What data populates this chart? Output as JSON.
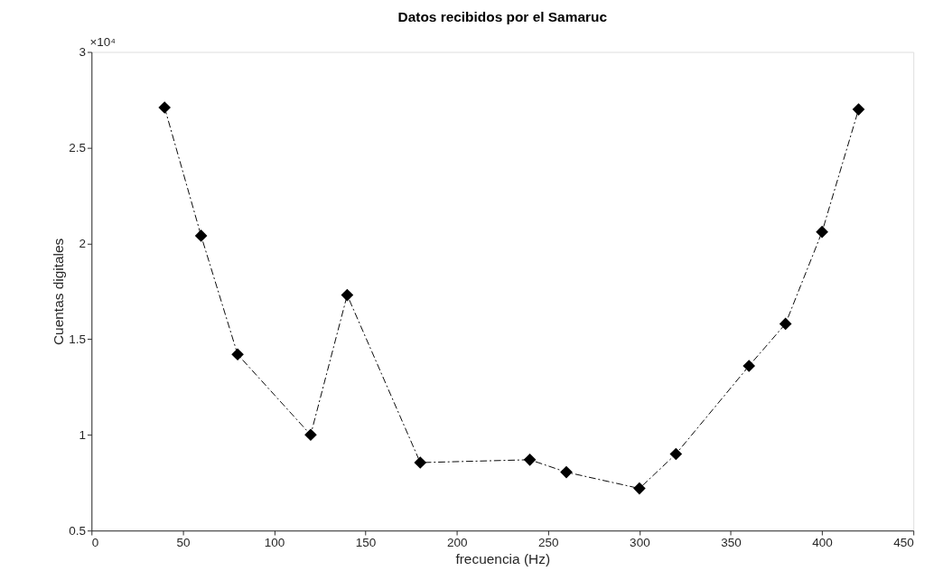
{
  "chart_data": {
    "type": "line",
    "title": "Datos recibidos por el Samaruc",
    "xlabel": "frecuencia (Hz)",
    "ylabel": "Cuentas digitales",
    "x": [
      40,
      60,
      80,
      120,
      140,
      180,
      240,
      260,
      300,
      320,
      360,
      380,
      400,
      420
    ],
    "series": [
      {
        "color": "#000000",
        "values": [
          2.71,
          2.04,
          1.42,
          1.0,
          1.73,
          0.855,
          0.87,
          0.805,
          0.72,
          0.9,
          1.36,
          1.58,
          2.06,
          2.7
        ]
      }
    ],
    "xlim": [
      0,
      450
    ],
    "xticks": [
      0,
      50,
      100,
      150,
      200,
      250,
      300,
      350,
      400,
      450
    ],
    "ylim": [
      0.5,
      3
    ],
    "yticks": [
      0.5,
      1,
      1.5,
      2,
      2.5,
      3
    ],
    "annotations": [
      "×10⁴"
    ],
    "marker": "diamond",
    "line_style": "dashed",
    "grid": false
  }
}
